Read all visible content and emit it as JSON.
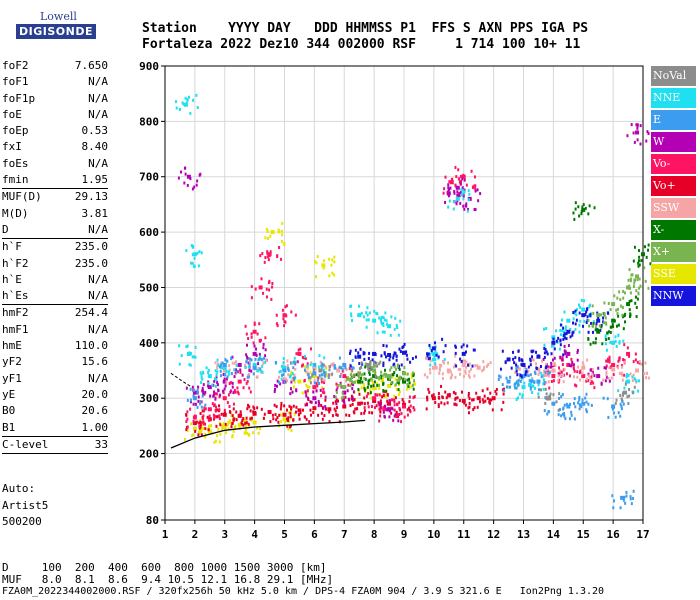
{
  "logo": {
    "top": "Lowell",
    "bottom": "DIGISONDE"
  },
  "header": {
    "row1": "Station    YYYY DAY   DDD HHMMSS P1  FFS S AXN PPS IGA PS",
    "row2": "Fortaleza 2022 Dez10 344 002000 RSF     1 714 100 10+ 11"
  },
  "params": [
    {
      "name": "foF2",
      "value": "7.650"
    },
    {
      "name": "foF1",
      "value": "N/A"
    },
    {
      "name": "foF1p",
      "value": "N/A"
    },
    {
      "name": "foE",
      "value": "N/A"
    },
    {
      "name": "foEp",
      "value": "0.53"
    },
    {
      "name": "fxI",
      "value": "8.40"
    },
    {
      "name": "foEs",
      "value": "N/A"
    },
    {
      "name": "fmin",
      "value": "1.95",
      "sep_after": true
    },
    {
      "name": "MUF(D)",
      "value": "29.13"
    },
    {
      "name": "M(D)",
      "value": "3.81"
    },
    {
      "name": "D",
      "value": "N/A",
      "sep_after": true
    },
    {
      "name": "h`F",
      "value": "235.0"
    },
    {
      "name": "h`F2",
      "value": "235.0"
    },
    {
      "name": "h`E",
      "value": "N/A"
    },
    {
      "name": "h`Es",
      "value": "N/A",
      "sep_after": true
    },
    {
      "name": "hmF2",
      "value": "254.4"
    },
    {
      "name": "hmF1",
      "value": "N/A"
    },
    {
      "name": "hmE",
      "value": "110.0"
    },
    {
      "name": "yF2",
      "value": "15.6"
    },
    {
      "name": "yF1",
      "value": "N/A"
    },
    {
      "name": "yE",
      "value": "20.0"
    },
    {
      "name": "B0",
      "value": "20.6"
    },
    {
      "name": "B1",
      "value": "1.00",
      "sep_after": true
    },
    {
      "name": "C-level",
      "value": "33",
      "sep_after": true
    }
  ],
  "auto": {
    "line1": "Auto:",
    "line2": "Artist5",
    "line3": "500200"
  },
  "legend": [
    {
      "label": "NoVal",
      "color": "#8c8c8c"
    },
    {
      "label": "NNE",
      "color": "#1ee0f0"
    },
    {
      "label": "E",
      "color": "#3c9cf0"
    },
    {
      "label": "W",
      "color": "#b400b4"
    },
    {
      "label": "Vo-",
      "color": "#ff1464"
    },
    {
      "label": "Vo+",
      "color": "#e60028"
    },
    {
      "label": "SSW",
      "color": "#f5a5a5"
    },
    {
      "label": "X-",
      "color": "#007800"
    },
    {
      "label": "X+",
      "color": "#78b450"
    },
    {
      "label": "SSE",
      "color": "#e6e600"
    },
    {
      "label": "NNW",
      "color": "#1414dc"
    }
  ],
  "footer": {
    "line1": "D     100  200  400  600  800 1000 1500 3000 [km]",
    "line2": "MUF   8.0  8.1  8.6  9.4 10.5 12.1 16.8 29.1 [MHz]",
    "line3": "FZA0M_2022344002000.RSF / 320fx256h 50 kHz 5.0 km / DPS-4 FZA0M 904 / 3.9 S 321.6 E   Ion2Png 1.3.20"
  },
  "chart_data": {
    "type": "scatter",
    "title": "",
    "xlabel": "",
    "ylabel": "",
    "xlim": [
      1,
      17
    ],
    "ylim": [
      80,
      900
    ],
    "x_ticks": [
      1,
      2,
      3,
      4,
      5,
      6,
      7,
      8,
      9,
      10,
      11,
      12,
      13,
      14,
      15,
      16,
      17
    ],
    "y_ticks": [
      80,
      200,
      300,
      400,
      500,
      600,
      700,
      800,
      900
    ],
    "grid": true,
    "legend_position": "right",
    "series": [
      {
        "name": "SSE",
        "color": "#e6e600",
        "points": [
          [
            2.0,
            245
          ],
          [
            2.5,
            240
          ],
          [
            3.0,
            248
          ],
          [
            3.5,
            252
          ],
          [
            4.0,
            256
          ],
          [
            4.6,
            600
          ],
          [
            5.0,
            262
          ],
          [
            5.5,
            330
          ],
          [
            6.0,
            340
          ],
          [
            7.5,
            330
          ],
          [
            8.0,
            318
          ],
          [
            8.5,
            322
          ],
          [
            9.0,
            330
          ],
          [
            6.3,
            540
          ]
        ]
      },
      {
        "name": "Vo+",
        "color": "#e60028",
        "points": [
          [
            2.0,
            255
          ],
          [
            2.5,
            262
          ],
          [
            3.0,
            270
          ],
          [
            3.5,
            268
          ],
          [
            4.0,
            272
          ],
          [
            4.5,
            275
          ],
          [
            5.0,
            270
          ],
          [
            5.5,
            278
          ],
          [
            6.0,
            282
          ],
          [
            6.5,
            280
          ],
          [
            7.0,
            285
          ],
          [
            7.5,
            290
          ],
          [
            8.0,
            295
          ],
          [
            8.5,
            290
          ],
          [
            9.0,
            288
          ],
          [
            10.0,
            300
          ],
          [
            10.5,
            305
          ],
          [
            11.0,
            295
          ],
          [
            11.5,
            300
          ],
          [
            12.0,
            300
          ]
        ]
      },
      {
        "name": "Vo-",
        "color": "#ff1464",
        "points": [
          [
            2.0,
            265
          ],
          [
            2.5,
            280
          ],
          [
            3.0,
            300
          ],
          [
            3.5,
            330
          ],
          [
            4.0,
            420
          ],
          [
            4.2,
            500
          ],
          [
            4.5,
            560
          ],
          [
            5.0,
            450
          ],
          [
            5.5,
            380
          ],
          [
            6.0,
            320
          ],
          [
            7.0,
            340
          ],
          [
            8.0,
            300
          ],
          [
            8.5,
            280
          ],
          [
            9.0,
            285
          ],
          [
            10.6,
            690
          ],
          [
            11.0,
            700
          ],
          [
            14.0,
            340
          ],
          [
            14.5,
            360
          ],
          [
            15.0,
            340
          ],
          [
            16.0,
            360
          ],
          [
            16.5,
            380
          ]
        ]
      },
      {
        "name": "W",
        "color": "#b400b4",
        "points": [
          [
            1.8,
            700
          ],
          [
            2.0,
            310
          ],
          [
            2.5,
            320
          ],
          [
            3.0,
            330
          ],
          [
            3.5,
            360
          ],
          [
            4.0,
            380
          ],
          [
            5.0,
            330
          ],
          [
            6.0,
            300
          ],
          [
            7.0,
            310
          ],
          [
            8.5,
            280
          ],
          [
            10.5,
            670
          ],
          [
            10.8,
            680
          ],
          [
            11.2,
            660
          ],
          [
            14.0,
            360
          ],
          [
            14.5,
            380
          ],
          [
            15.5,
            340
          ],
          [
            16.8,
            780
          ]
        ]
      },
      {
        "name": "SSW",
        "color": "#f5a5a5",
        "points": [
          [
            3.0,
            350
          ],
          [
            4.0,
            355
          ],
          [
            5.0,
            352
          ],
          [
            6.0,
            354
          ],
          [
            6.8,
            350
          ],
          [
            10.0,
            355
          ],
          [
            10.5,
            350
          ],
          [
            11.0,
            360
          ],
          [
            11.5,
            355
          ],
          [
            13.0,
            360
          ],
          [
            13.5,
            352
          ],
          [
            14.0,
            350
          ],
          [
            15.0,
            355
          ],
          [
            16.0,
            352
          ],
          [
            16.8,
            350
          ]
        ]
      },
      {
        "name": "NNE",
        "color": "#1ee0f0",
        "points": [
          [
            1.7,
            830
          ],
          [
            1.8,
            380
          ],
          [
            2.0,
            560
          ],
          [
            2.5,
            340
          ],
          [
            3.0,
            355
          ],
          [
            4.0,
            360
          ],
          [
            5.0,
            355
          ],
          [
            6.0,
            360
          ],
          [
            7.5,
            450
          ],
          [
            8.0,
            440
          ],
          [
            8.5,
            430
          ],
          [
            10.0,
            380
          ],
          [
            10.8,
            660
          ],
          [
            13.0,
            320
          ],
          [
            13.5,
            330
          ],
          [
            14.0,
            410
          ],
          [
            14.5,
            440
          ],
          [
            15.0,
            460
          ],
          [
            16.0,
            400
          ],
          [
            16.5,
            330
          ]
        ]
      },
      {
        "name": "E",
        "color": "#3c9cf0",
        "points": [
          [
            2.0,
            300
          ],
          [
            3.0,
            360
          ],
          [
            4.0,
            355
          ],
          [
            5.0,
            350
          ],
          [
            6.0,
            345
          ],
          [
            7.0,
            360
          ],
          [
            12.5,
            330
          ],
          [
            13.0,
            340
          ],
          [
            13.5,
            330
          ],
          [
            14.0,
            290
          ],
          [
            14.5,
            285
          ],
          [
            15.0,
            290
          ],
          [
            16.0,
            285
          ],
          [
            16.3,
            120
          ]
        ]
      },
      {
        "name": "NNW",
        "color": "#1414dc",
        "points": [
          [
            7.5,
            375
          ],
          [
            8.0,
            380
          ],
          [
            8.5,
            378
          ],
          [
            9.0,
            382
          ],
          [
            10.0,
            390
          ],
          [
            11.0,
            380
          ],
          [
            12.5,
            370
          ],
          [
            13.0,
            360
          ],
          [
            13.5,
            375
          ],
          [
            14.0,
            400
          ],
          [
            14.5,
            420
          ],
          [
            15.0,
            450
          ],
          [
            15.5,
            440
          ]
        ]
      },
      {
        "name": "X-",
        "color": "#007800",
        "points": [
          [
            7.5,
            330
          ],
          [
            8.0,
            340
          ],
          [
            8.5,
            335
          ],
          [
            9.0,
            330
          ],
          [
            15.0,
            640
          ],
          [
            15.5,
            420
          ],
          [
            16.0,
            440
          ],
          [
            16.5,
            470
          ],
          [
            17.0,
            560
          ]
        ]
      },
      {
        "name": "X+",
        "color": "#78b450",
        "points": [
          [
            7.0,
            320
          ],
          [
            7.5,
            345
          ],
          [
            8.0,
            350
          ],
          [
            8.5,
            340
          ],
          [
            9.0,
            345
          ],
          [
            15.5,
            450
          ],
          [
            16.0,
            470
          ],
          [
            16.5,
            500
          ],
          [
            16.8,
            520
          ]
        ]
      },
      {
        "name": "NoVal",
        "color": "#8c8c8c",
        "points": [
          [
            6.2,
            350
          ],
          [
            7.8,
            360
          ],
          [
            13.8,
            300
          ],
          [
            16.4,
            310
          ]
        ]
      }
    ],
    "fit_curve": {
      "color": "#000000",
      "points": [
        [
          1.2,
          210
        ],
        [
          2.0,
          228
        ],
        [
          3.0,
          242
        ],
        [
          4.0,
          248
        ],
        [
          5.0,
          251
        ],
        [
          6.0,
          254
        ],
        [
          7.0,
          257
        ],
        [
          7.7,
          260
        ]
      ]
    },
    "fit_curve_dashed": {
      "color": "#000000",
      "points": [
        [
          1.2,
          345
        ],
        [
          1.6,
          330
        ],
        [
          1.9,
          320
        ]
      ]
    }
  }
}
